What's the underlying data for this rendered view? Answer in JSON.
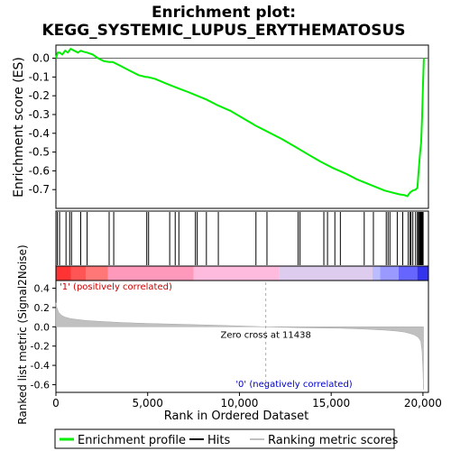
{
  "chart_data": {
    "type": "line",
    "title": "Enrichment plot:",
    "subtitle": "KEGG_SYSTEMIC_LUPUS_ERYTHEMATOSUS",
    "xlabel": "Rank in Ordered Dataset",
    "xlim": [
      0,
      20300
    ],
    "x_ticks": [
      0,
      5000,
      10000,
      15000,
      20000
    ],
    "x_tick_labels": [
      "0",
      "5,000",
      "10,000",
      "15,000",
      "20,000"
    ],
    "panels": {
      "es": {
        "ylabel": "Enrichment score (ES)",
        "ylim": [
          -0.8,
          0.07
        ],
        "y_ticks": [
          0.0,
          -0.1,
          -0.2,
          -0.3,
          -0.4,
          -0.5,
          -0.6,
          -0.7
        ],
        "y_tick_labels": [
          "0.0",
          "-0.1",
          "-0.2",
          "-0.3",
          "-0.4",
          "-0.5",
          "-0.6",
          "-0.7"
        ],
        "series": [
          {
            "name": "Enrichment profile",
            "color": "#00ee00",
            "x": [
              0,
              100,
              200,
              350,
              500,
              650,
              800,
              1000,
              1200,
              1350,
              1500,
              1700,
              2000,
              2300,
              2600,
              2900,
              3100,
              3300,
              3600,
              4000,
              4500,
              4900,
              5000,
              5400,
              6000,
              6400,
              6800,
              7200,
              7700,
              8200,
              8800,
              9500,
              10200,
              10900,
              11500,
              12300,
              13000,
              13700,
              14400,
              15100,
              15800,
              16400,
              16900,
              17400,
              17900,
              18300,
              18700,
              19000,
              19150,
              19300,
              19450,
              19600,
              19700,
              19750,
              19800,
              19850,
              19900,
              19950,
              20000,
              20050
            ],
            "y": [
              0.0,
              0.03,
              0.03,
              0.02,
              0.04,
              0.03,
              0.05,
              0.04,
              0.03,
              0.04,
              0.035,
              0.03,
              0.02,
              0.0,
              -0.015,
              -0.02,
              -0.02,
              -0.03,
              -0.045,
              -0.065,
              -0.09,
              -0.1,
              -0.1,
              -0.11,
              -0.135,
              -0.15,
              -0.165,
              -0.18,
              -0.2,
              -0.22,
              -0.25,
              -0.28,
              -0.32,
              -0.36,
              -0.39,
              -0.43,
              -0.47,
              -0.51,
              -0.55,
              -0.585,
              -0.615,
              -0.645,
              -0.665,
              -0.685,
              -0.705,
              -0.715,
              -0.725,
              -0.73,
              -0.735,
              -0.715,
              -0.705,
              -0.7,
              -0.69,
              -0.62,
              -0.56,
              -0.5,
              -0.45,
              -0.32,
              -0.15,
              0.0
            ]
          }
        ]
      },
      "hits": {
        "legend_name": "Hits",
        "positions": [
          80,
          200,
          550,
          750,
          850,
          1350,
          1700,
          2900,
          3150,
          4950,
          5050,
          6200,
          6500,
          6700,
          7600,
          7700,
          8200,
          8850,
          10900,
          11500,
          13200,
          13300,
          14600,
          14800,
          15200,
          15500,
          16800,
          17300,
          18000,
          18100,
          18200,
          18600,
          18900,
          19200,
          19300,
          19350,
          19450,
          19600,
          19700,
          19750,
          19800,
          19830,
          19860,
          19890,
          19920,
          19950,
          19980,
          20010
        ]
      },
      "colorbar": {
        "colors": [
          "#ff3333",
          "#ff5555",
          "#ff7777",
          "#ff99bb",
          "#ffbbdd",
          "#ddccee",
          "#bbbbff",
          "#9999ff",
          "#6666ff",
          "#3333ee"
        ],
        "label_positive": "'1' (positively correlated)",
        "label_negative": "'0' (negatively correlated)"
      },
      "metric": {
        "ylabel": "Ranked list metric (Signal2Noise)",
        "ylim": [
          -0.68,
          0.48
        ],
        "y_ticks": [
          0.4,
          0.2,
          0.0,
          -0.2,
          -0.4,
          -0.6
        ],
        "y_tick_labels": [
          "0.4",
          "0.2",
          "0.0",
          "-0.2",
          "-0.4",
          "-0.6"
        ],
        "x": [
          0,
          50,
          150,
          300,
          500,
          800,
          1200,
          1700,
          2500,
          3500,
          5000,
          7000,
          9000,
          11438,
          13500,
          15500,
          17000,
          18000,
          18600,
          19000,
          19300,
          19550,
          19750,
          19880,
          19950,
          20000,
          20030
        ],
        "y": [
          0.25,
          0.2,
          0.15,
          0.12,
          0.1,
          0.085,
          0.075,
          0.065,
          0.055,
          0.045,
          0.035,
          0.025,
          0.015,
          0.0,
          -0.01,
          -0.015,
          -0.025,
          -0.035,
          -0.045,
          -0.055,
          -0.07,
          -0.085,
          -0.11,
          -0.15,
          -0.25,
          -0.45,
          -0.65
        ],
        "zero_cross_label": "Zero cross at 11438",
        "zero_cross": 11438
      }
    },
    "legend": {
      "position": "bottom",
      "entries": [
        {
          "label": "Enrichment profile",
          "color": "#00ee00"
        },
        {
          "label": "Hits",
          "color": "#000000"
        },
        {
          "label": "Ranking metric scores",
          "color": "#c0c0c0"
        }
      ]
    }
  }
}
